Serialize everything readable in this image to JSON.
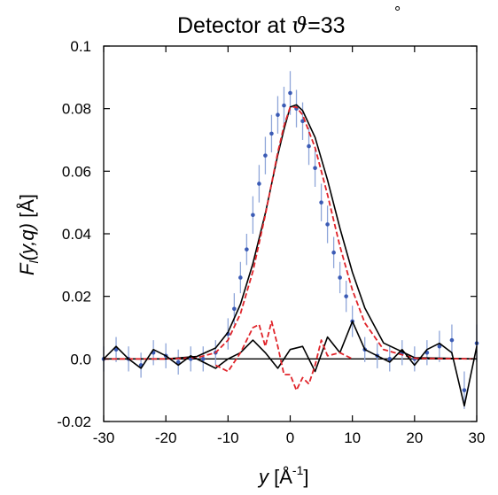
{
  "chart_data": {
    "type": "line",
    "title": {
      "prefix": "Detector at ",
      "symbol": "ϑ",
      "suffix": "=33",
      "degree": "°"
    },
    "xlabel": {
      "var": "y",
      "unit": "[Å",
      "exp": "-1",
      "close": "]"
    },
    "ylabel": {
      "var": "F",
      "sub": "l",
      "args": "(y,q)",
      "unit": "[Å]"
    },
    "xlim": [
      -30,
      30
    ],
    "ylim": [
      -0.02,
      0.1
    ],
    "x_ticks": [
      -30,
      -20,
      -10,
      0,
      10,
      20,
      30
    ],
    "x_tick_labels": [
      "-30",
      "-20",
      "-10",
      "0",
      "10",
      "20",
      "30"
    ],
    "y_ticks": [
      -0.02,
      0,
      0.02,
      0.04,
      0.06,
      0.08,
      0.1
    ],
    "y_tick_labels": [
      "-0.02",
      "0.0",
      "0.02",
      "0.04",
      "0.06",
      "0.08",
      "0.1"
    ],
    "grid": false,
    "colors": {
      "data": "#3b5bb5",
      "errorbar": "#8fa6d9",
      "fit_black": "#000000",
      "fit_red": "#e0242a"
    },
    "series": [
      {
        "style": "points-with-errorbars",
        "color": "#3b5bb5",
        "x": [
          -30,
          -28,
          -26,
          -24,
          -22,
          -20,
          -18,
          -16,
          -14,
          -12,
          -10,
          -9,
          -8,
          -7,
          -6,
          -5,
          -4,
          -3,
          -2,
          -1,
          0,
          1,
          2,
          3,
          4,
          5,
          6,
          7,
          8,
          9,
          10,
          12,
          14,
          16,
          18,
          20,
          22,
          24,
          26,
          28,
          30
        ],
        "y": [
          0.0,
          0.003,
          0.0,
          -0.002,
          0.002,
          0.001,
          -0.001,
          0.0,
          0.0,
          0.002,
          0.008,
          0.016,
          0.026,
          0.035,
          0.046,
          0.056,
          0.065,
          0.072,
          0.078,
          0.081,
          0.085,
          0.08,
          0.076,
          0.068,
          0.061,
          0.05,
          0.043,
          0.034,
          0.026,
          0.02,
          0.012,
          0.003,
          0.001,
          0.0,
          0.002,
          0.0,
          0.002,
          0.004,
          0.006,
          -0.01,
          0.005
        ],
        "err": [
          0.004,
          0.004,
          0.004,
          0.004,
          0.004,
          0.004,
          0.004,
          0.004,
          0.004,
          0.004,
          0.005,
          0.005,
          0.005,
          0.005,
          0.006,
          0.006,
          0.006,
          0.006,
          0.006,
          0.006,
          0.007,
          0.006,
          0.006,
          0.006,
          0.006,
          0.006,
          0.006,
          0.005,
          0.005,
          0.005,
          0.005,
          0.004,
          0.004,
          0.004,
          0.004,
          0.004,
          0.004,
          0.005,
          0.005,
          0.006,
          0.006
        ]
      },
      {
        "style": "solid-line",
        "color": "#000000",
        "x": [
          -30,
          -20,
          -15,
          -12,
          -10,
          -8,
          -6,
          -4,
          -2,
          -1,
          0,
          1,
          2,
          4,
          6,
          8,
          10,
          12,
          15,
          20,
          30
        ],
        "y": [
          0.0,
          0.0,
          0.0008,
          0.0035,
          0.0085,
          0.0175,
          0.0305,
          0.0465,
          0.0652,
          0.0734,
          0.0805,
          0.0812,
          0.0794,
          0.0708,
          0.0572,
          0.0418,
          0.0277,
          0.0163,
          0.0051,
          0.0004,
          0.0
        ]
      },
      {
        "style": "dashed-line",
        "color": "#e0242a",
        "x": [
          -30,
          -20,
          -15,
          -12,
          -10,
          -8,
          -6,
          -4,
          -2,
          -1,
          0,
          1,
          2,
          4,
          6,
          8,
          10,
          12,
          15,
          20,
          30
        ],
        "y": [
          0.0,
          0.0,
          0.0004,
          0.002,
          0.006,
          0.0145,
          0.028,
          0.046,
          0.066,
          0.0745,
          0.0805,
          0.0805,
          0.078,
          0.0675,
          0.0525,
          0.036,
          0.022,
          0.0115,
          0.003,
          0.0002,
          0.0
        ]
      },
      {
        "style": "solid-line",
        "color": "#000000",
        "x": [
          -30,
          -28,
          -26,
          -24,
          -22,
          -20,
          -18,
          -16,
          -14,
          -12,
          -10,
          -8,
          -6,
          -4,
          -2,
          0,
          2,
          4,
          6,
          8,
          10,
          12,
          14,
          16,
          18,
          20,
          22,
          24,
          26,
          28,
          30
        ],
        "y": [
          0.0,
          0.004,
          0.0,
          -0.003,
          0.003,
          0.001,
          -0.002,
          0.001,
          -0.001,
          -0.003,
          0.0,
          0.002,
          0.006,
          0.002,
          -0.003,
          0.003,
          0.004,
          -0.004,
          0.007,
          0.002,
          0.012,
          0.003,
          0.001,
          -0.001,
          0.003,
          -0.002,
          0.003,
          0.005,
          0.002,
          -0.015,
          0.004
        ]
      },
      {
        "style": "dashed-line",
        "color": "#e0242a",
        "x": [
          -12,
          -10,
          -8,
          -6,
          -5,
          -4,
          -3,
          -2,
          -1,
          0,
          1,
          2,
          3,
          4,
          5,
          6,
          8,
          10
        ],
        "y": [
          -0.002,
          -0.004,
          0.002,
          0.01,
          0.011,
          0.004,
          0.012,
          0.004,
          -0.005,
          -0.005,
          -0.01,
          -0.006,
          -0.008,
          -0.002,
          0.006,
          0.001,
          0.002,
          0.0
        ]
      }
    ]
  }
}
